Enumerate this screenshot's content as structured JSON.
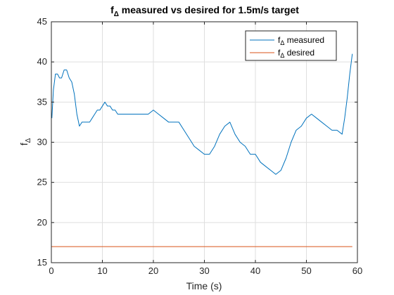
{
  "chart_data": {
    "type": "line",
    "title": "f measured vs desired for 1.5m/s target",
    "title_parts": {
      "prefix": "f",
      "subscript": "Δ",
      "suffix": " measured vs desired for 1.5m/s target"
    },
    "xlabel": "Time (s)",
    "ylabel": "f",
    "ylabel_parts": {
      "base": "f",
      "subscript": "Δ"
    },
    "xlim": [
      0,
      60
    ],
    "ylim": [
      15,
      45
    ],
    "xticks": [
      0,
      10,
      20,
      30,
      40,
      50,
      60
    ],
    "yticks": [
      15,
      20,
      25,
      30,
      35,
      40,
      45
    ],
    "grid": true,
    "legend_position": "top-right",
    "series": [
      {
        "name": "f measured",
        "name_parts": {
          "base": "f",
          "subscript": "Δ",
          "suffix": " measured"
        },
        "color": "#0072BD",
        "x": [
          0.1,
          0.4,
          0.8,
          1.2,
          1.6,
          2.0,
          2.5,
          3.0,
          3.5,
          4.0,
          4.5,
          5.0,
          5.5,
          6.0,
          6.5,
          7.0,
          7.5,
          8.0,
          8.5,
          9.0,
          9.5,
          10.0,
          10.5,
          11.0,
          11.5,
          12.0,
          12.5,
          13.0,
          13.5,
          14.0,
          15.0,
          16.0,
          17.0,
          18.0,
          19.0,
          20.0,
          21.0,
          22.0,
          23.0,
          24.0,
          25.0,
          26.0,
          27.0,
          28.0,
          29.0,
          30.0,
          31.0,
          32.0,
          33.0,
          34.0,
          35.0,
          36.0,
          37.0,
          38.0,
          39.0,
          40.0,
          41.0,
          42.0,
          43.0,
          44.0,
          45.0,
          46.0,
          47.0,
          48.0,
          49.0,
          50.0,
          51.0,
          52.0,
          53.0,
          54.0,
          55.0,
          56.0,
          57.0,
          57.5,
          58.0,
          58.5,
          59.0
        ],
        "y": [
          33.0,
          36.5,
          38.5,
          38.5,
          38.0,
          38.0,
          39.0,
          39.0,
          38.0,
          37.5,
          36.0,
          33.5,
          32.0,
          32.5,
          32.5,
          32.5,
          32.5,
          33.0,
          33.5,
          34.0,
          34.0,
          34.5,
          35.0,
          34.5,
          34.5,
          34.0,
          34.0,
          33.5,
          33.5,
          33.5,
          33.5,
          33.5,
          33.5,
          33.5,
          33.5,
          34.0,
          33.5,
          33.0,
          32.5,
          32.5,
          32.5,
          31.5,
          30.5,
          29.5,
          29.0,
          28.5,
          28.5,
          29.5,
          31.0,
          32.0,
          32.5,
          31.0,
          30.0,
          29.5,
          28.5,
          28.5,
          27.5,
          27.0,
          26.5,
          26.0,
          26.5,
          28.0,
          30.0,
          31.5,
          32.0,
          33.0,
          33.5,
          33.0,
          32.5,
          32.0,
          31.5,
          31.5,
          31.0,
          33.0,
          35.5,
          38.5,
          41.0
        ]
      },
      {
        "name": "f desired",
        "name_parts": {
          "base": "f",
          "subscript": "Δ",
          "suffix": " desired"
        },
        "color": "#D95319",
        "x": [
          0,
          59
        ],
        "y": [
          17,
          17
        ]
      }
    ]
  }
}
